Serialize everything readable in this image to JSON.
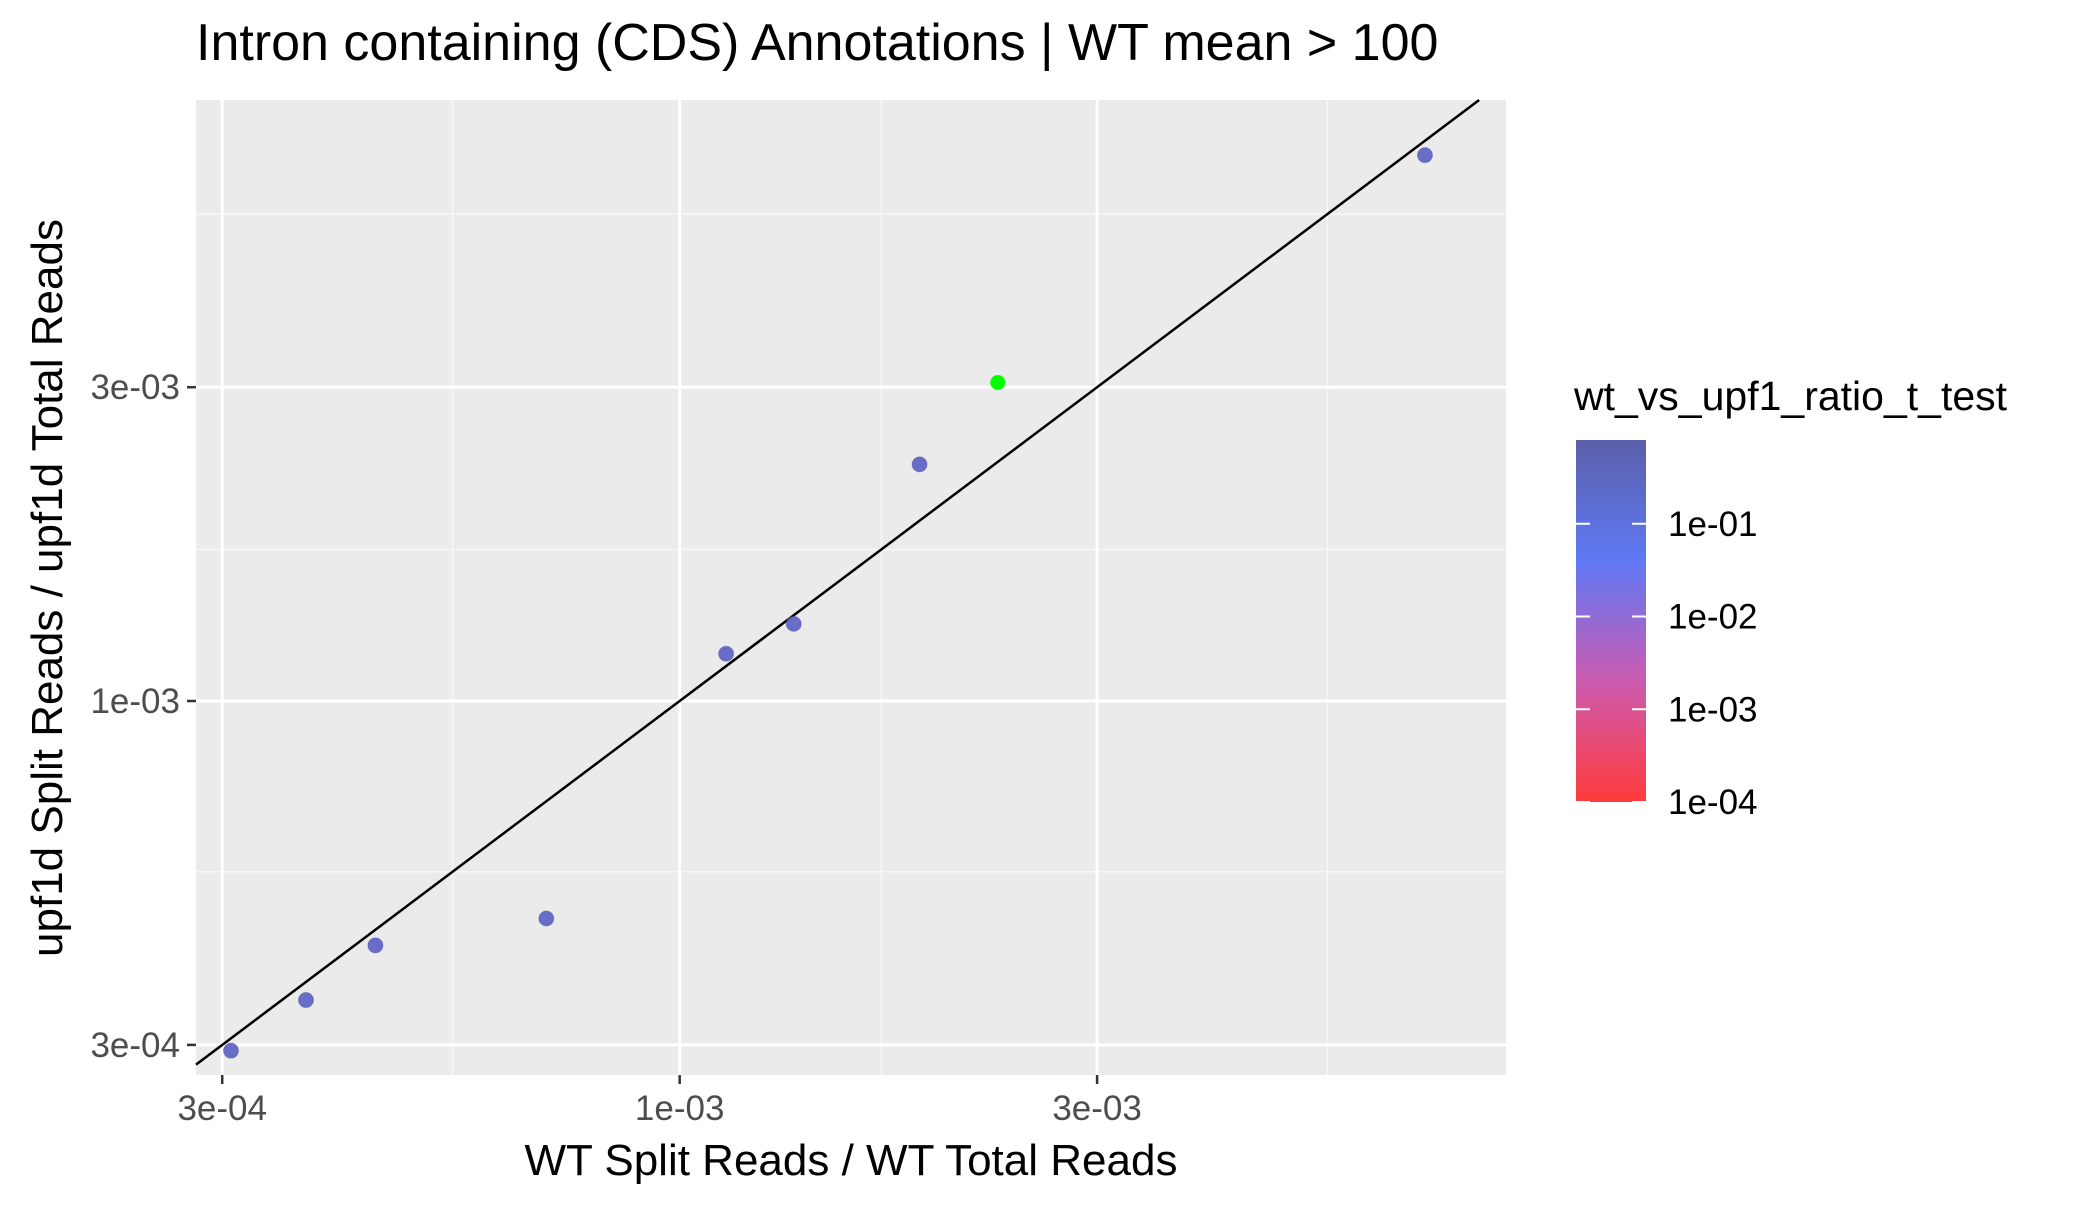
{
  "chart_data": {
    "type": "scatter",
    "title": "Intron containing (CDS) Annotations | WT mean > 100",
    "xlabel": "WT Split Reads / WT Total Reads",
    "ylabel": "upf1d Split Reads / upf1d Total Reads",
    "x_scale": "log10",
    "y_scale": "log10",
    "xlim": [
      0.00028,
      0.0088
    ],
    "ylim": [
      0.00027,
      0.0082
    ],
    "x_ticks": [
      {
        "value": 0.0003,
        "label": "3e-04"
      },
      {
        "value": 0.001,
        "label": "1e-03"
      },
      {
        "value": 0.003,
        "label": "3e-03"
      }
    ],
    "y_ticks": [
      {
        "value": 0.0003,
        "label": "3e-04"
      },
      {
        "value": 0.001,
        "label": "1e-03"
      },
      {
        "value": 0.003,
        "label": "3e-03"
      }
    ],
    "x_minor": [
      0.00055,
      0.0017,
      0.0055
    ],
    "y_minor": [
      0.00055,
      0.0017,
      0.0055
    ],
    "grid": true,
    "reference_line": {
      "type": "identity",
      "slope": 1,
      "intercept": 0,
      "color": "#000000"
    },
    "points": [
      {
        "x": 0.000307,
        "y": 0.000294,
        "color": "#5A5FC4"
      },
      {
        "x": 0.000374,
        "y": 0.000351,
        "color": "#5A5FC4"
      },
      {
        "x": 0.000449,
        "y": 0.000425,
        "color": "#5A5FC4"
      },
      {
        "x": 0.000704,
        "y": 0.000467,
        "color": "#5A5FC4"
      },
      {
        "x": 0.00113,
        "y": 0.00118,
        "color": "#5A5FC4"
      },
      {
        "x": 0.00135,
        "y": 0.00131,
        "color": "#5A5FC4"
      },
      {
        "x": 0.00188,
        "y": 0.00229,
        "color": "#5A5FC4"
      },
      {
        "x": 0.00231,
        "y": 0.00305,
        "color": "#00FF00"
      },
      {
        "x": 0.00711,
        "y": 0.00676,
        "color": "#5A5FC4"
      }
    ],
    "legend": {
      "title": "wt_vs_upf1_ratio_t_test",
      "placement": "right",
      "scale": "log10",
      "range": [
        0.0001,
        0.8
      ],
      "colors": [
        "#FF3B3B",
        "#CC5BB0",
        "#5F79F5",
        "#5A5FA8"
      ],
      "ticks": [
        {
          "value": 0.1,
          "label": "1e-01"
        },
        {
          "value": 0.01,
          "label": "1e-02"
        },
        {
          "value": 0.001,
          "label": "1e-03"
        },
        {
          "value": 0.0001,
          "label": "1e-04"
        }
      ]
    },
    "colors": {
      "panel_background": "#EBEBEB",
      "grid_major": "#FFFFFF",
      "grid_minor": "#F7F7F7",
      "axis_text": "#4D4D4D",
      "title_text": "#000000"
    }
  }
}
